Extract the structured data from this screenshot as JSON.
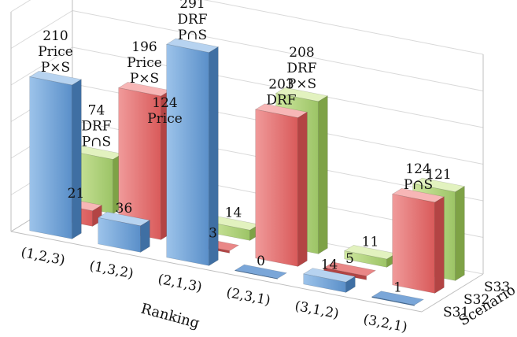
{
  "chart_data": {
    "type": "bar",
    "subtype": "3d-bar",
    "title": "",
    "xlabel": "Ranking",
    "ylabel": "",
    "zlabel": "Scenario",
    "categories": [
      "(1,2,3)",
      "(1,3,2)",
      "(2,1,3)",
      "(2,3,1)",
      "(3,1,2)",
      "(3,2,1)"
    ],
    "ylim": [
      0,
      300
    ],
    "grid": true,
    "series": [
      {
        "name": "S31",
        "color": "#5b9bd5",
        "values": [
          210,
          36,
          291,
          0,
          14,
          1
        ],
        "annotations": [
          [
            "210",
            "Price",
            "P×S"
          ],
          [
            "36"
          ],
          [
            "291",
            "DRF",
            "P∩S"
          ],
          [
            "0"
          ],
          [
            "14"
          ],
          [
            "1"
          ]
        ]
      },
      {
        "name": "S32",
        "color": "#e06666",
        "values": [
          21,
          196,
          3,
          203,
          5,
          124
        ],
        "annotations": [
          [
            "21"
          ],
          [
            "196",
            "Price",
            "P×S"
          ],
          [
            "3"
          ],
          [
            "203",
            "DRF"
          ],
          [
            "5"
          ],
          [
            "124",
            "P∩S"
          ]
        ]
      },
      {
        "name": "S33",
        "color": "#9bbb59",
        "values": [
          74,
          124,
          14,
          208,
          11,
          121
        ],
        "annotations": [
          [
            "74",
            "DRF",
            "P∩S"
          ],
          [
            "124",
            "Price"
          ],
          [
            "14"
          ],
          [
            "208",
            "DRF",
            "P×S"
          ],
          [
            "11"
          ],
          [
            "121"
          ]
        ]
      }
    ]
  }
}
